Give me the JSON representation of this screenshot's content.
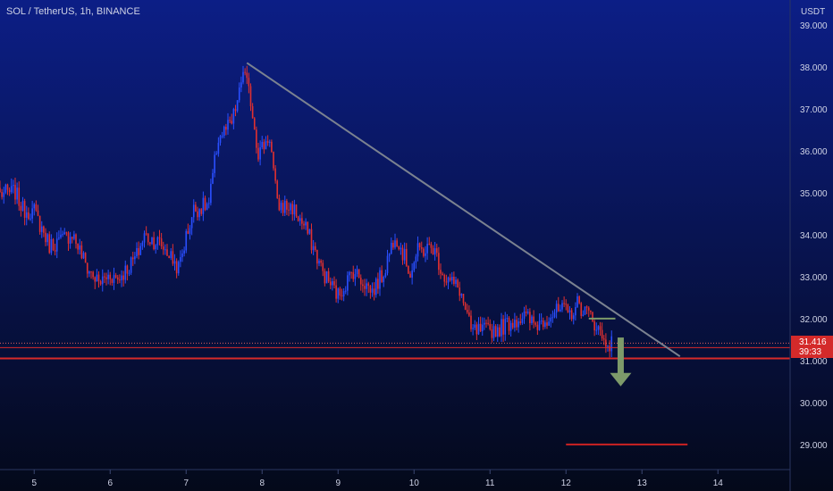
{
  "header": {
    "symbol_title": "SOL / TetherUS, 1h, BINANCE"
  },
  "price_axis": {
    "currency": "USDT",
    "ticks": [
      "39.000",
      "38.000",
      "37.000",
      "36.000",
      "35.000",
      "34.000",
      "33.000",
      "32.000",
      "31.000",
      "30.000",
      "29.000"
    ],
    "tick_values": [
      39,
      38,
      37,
      36,
      35,
      34,
      33,
      32,
      31,
      30,
      29
    ]
  },
  "time_axis": {
    "ticks": [
      "5",
      "6",
      "7",
      "8",
      "9",
      "10",
      "11",
      "12",
      "13",
      "14"
    ],
    "tick_values": [
      5,
      6,
      7,
      8,
      9,
      10,
      11,
      12,
      13,
      14
    ]
  },
  "last_price": {
    "value": "31.416",
    "countdown": "39:33",
    "y": 31.416
  },
  "colors": {
    "bg_top": "#0c1e86",
    "bg_bottom": "#04091a",
    "up": "#2a4fff",
    "down": "#e03030",
    "trendline": "#7b8290",
    "support": "#d62a2a",
    "target": "#cc2222",
    "arrow": "#7d9a6a",
    "axis_text": "#cfd3e6"
  },
  "chart_data": {
    "type": "candlestick",
    "title": "SOL / TetherUS, 1h, BINANCE",
    "xlabel": "",
    "ylabel": "USDT",
    "xlim": [
      4.55,
      14.95
    ],
    "ylim": [
      28.4,
      39.6
    ],
    "grid": false,
    "series": [
      {
        "values": [
          [
            4.55,
            34.98
          ],
          [
            4.75,
            35.02
          ],
          [
            4.85,
            34.6
          ],
          [
            5.0,
            34.55
          ],
          [
            5.2,
            33.75
          ],
          [
            5.35,
            33.85
          ],
          [
            5.5,
            34.05
          ],
          [
            5.7,
            33.2
          ],
          [
            5.85,
            32.85
          ],
          [
            6.0,
            33.05
          ],
          [
            6.1,
            32.95
          ],
          [
            6.25,
            33.25
          ],
          [
            6.35,
            33.5
          ],
          [
            6.45,
            33.98
          ],
          [
            6.65,
            33.8
          ],
          [
            6.75,
            33.6
          ],
          [
            6.9,
            33.2
          ],
          [
            7.0,
            33.95
          ],
          [
            7.1,
            34.6
          ],
          [
            7.3,
            34.72
          ],
          [
            7.42,
            36.3
          ],
          [
            7.6,
            36.65
          ],
          [
            7.7,
            37.35
          ],
          [
            7.75,
            37.95
          ],
          [
            7.85,
            37.2
          ],
          [
            7.95,
            35.95
          ],
          [
            8.1,
            36.35
          ],
          [
            8.2,
            34.7
          ],
          [
            8.4,
            34.65
          ],
          [
            8.6,
            34.05
          ],
          [
            8.8,
            33.1
          ],
          [
            9.0,
            32.55
          ],
          [
            9.2,
            33.15
          ],
          [
            9.45,
            32.65
          ],
          [
            9.6,
            33.1
          ],
          [
            9.75,
            34.05
          ],
          [
            9.95,
            33.1
          ],
          [
            10.05,
            33.6
          ],
          [
            10.25,
            33.7
          ],
          [
            10.4,
            33.0
          ],
          [
            10.6,
            32.7
          ],
          [
            10.75,
            31.7
          ],
          [
            10.9,
            31.7
          ],
          [
            11.1,
            31.75
          ],
          [
            11.3,
            31.95
          ],
          [
            11.45,
            32.05
          ],
          [
            11.6,
            31.85
          ],
          [
            11.8,
            32.1
          ],
          [
            11.95,
            32.2
          ],
          [
            12.05,
            32.1
          ],
          [
            12.15,
            32.35
          ],
          [
            12.3,
            32.1
          ],
          [
            12.4,
            31.85
          ],
          [
            12.5,
            31.45
          ],
          [
            12.6,
            31.42
          ]
        ]
      }
    ],
    "annotations": {
      "trendline": [
        [
          7.8,
          38.1
        ],
        [
          13.5,
          31.1
        ]
      ],
      "support_level": 31.05,
      "target_level": [
        [
          12.0,
          29.0
        ],
        [
          13.6,
          29.0
        ]
      ],
      "breakdown_arrow": {
        "x": 12.72,
        "from": 31.55,
        "to": 30.45
      },
      "ledge": [
        [
          12.3,
          32.0
        ],
        [
          12.65,
          32.0
        ]
      ]
    }
  }
}
